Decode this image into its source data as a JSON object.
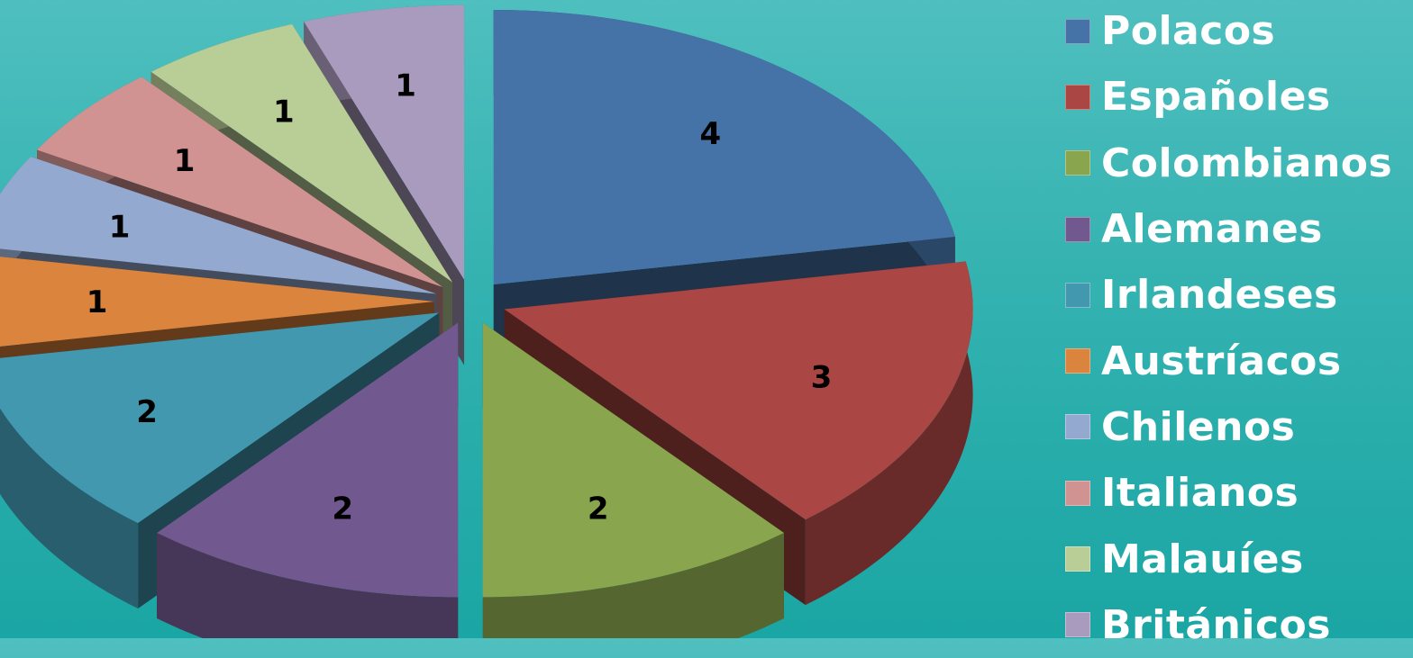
{
  "chart_data": {
    "type": "pie",
    "variant": "3d-exploded",
    "title": "",
    "categories": [
      "Polacos",
      "Españoles",
      "Colombianos",
      "Alemanes",
      "Irlandeses",
      "Austríacos",
      "Chilenos",
      "Italianos",
      "Malauíes",
      "Británicos"
    ],
    "values": [
      4,
      3,
      2,
      2,
      2,
      1,
      1,
      1,
      1,
      1
    ],
    "data_labels": [
      "4",
      "3",
      "2",
      "2",
      "2",
      "1",
      "1",
      "1",
      "1",
      "1"
    ],
    "colors": [
      "#4572a7",
      "#aa4643",
      "#89a54e",
      "#71588f",
      "#4198af",
      "#db843d",
      "#93a9cf",
      "#d19392",
      "#b9cd96",
      "#a99bbd"
    ],
    "legend_position": "right"
  }
}
